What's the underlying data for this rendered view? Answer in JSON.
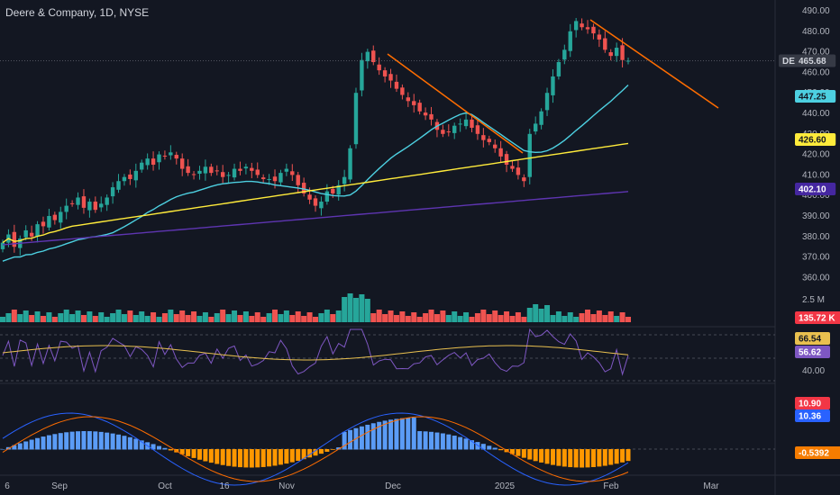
{
  "header": {
    "title": "Deere & Company, 1D, NYSE"
  },
  "colors": {
    "background": "#131722",
    "up": "#26a69a",
    "down": "#ef5350",
    "sma_fast": "#4dd0e1",
    "sma_mid": "#ffeb3b",
    "sma_slow": "#5e35b1",
    "trendline": "#ff6d00",
    "rsi": "#7e57c2",
    "rsi_ma": "#e9c04f",
    "macd": "#2962ff",
    "signal": "#ff6d00"
  },
  "price_pane": {
    "ticks": [
      "490.00",
      "480.00",
      "470.00",
      "460.00",
      "450.00",
      "440.00",
      "430.00",
      "420.00",
      "410.00",
      "400.00",
      "390.00",
      "380.00",
      "370.00",
      "360.00"
    ],
    "last_price": {
      "symbol": "DE",
      "value": "465.68"
    },
    "sma_labels": {
      "fast": "447.25",
      "mid": "426.60",
      "slow": "402.10"
    }
  },
  "volume_pane": {
    "tick": "2.5 M",
    "last_label": "135.72 K"
  },
  "rsi_pane": {
    "labels": {
      "rsi_ma": "66.54",
      "rsi": "56.62"
    },
    "tick": "40.00"
  },
  "macd_pane": {
    "labels": {
      "signal": "10.90",
      "macd": "10.36",
      "hist": "-0.5392"
    }
  },
  "time_axis": [
    "6",
    "Sep",
    "Oct",
    "16",
    "Nov",
    "Dec",
    "2025",
    "Feb",
    "Mar"
  ],
  "chart_data": {
    "type": "candlestick",
    "title": "Deere & Company, 1D, NYSE",
    "ylim": [
      355,
      495
    ],
    "last_price": 465.68,
    "sma": {
      "fast": 447.25,
      "mid": 426.6,
      "slow": 402.1
    },
    "volume_last": "135.72 K",
    "rsi": 56.62,
    "rsi_ma": 66.54,
    "macd": 10.36,
    "macd_signal": 10.9,
    "macd_hist": -0.5392,
    "series_close": [
      377,
      381,
      375,
      379,
      383,
      380,
      386,
      385,
      390,
      388,
      392,
      395,
      396,
      399,
      394,
      397,
      393,
      396,
      399,
      404,
      407,
      409,
      408,
      412,
      416,
      418,
      415,
      420,
      419,
      421,
      418,
      413,
      411,
      410,
      412,
      414,
      411,
      412,
      409,
      410,
      413,
      412,
      414,
      412,
      410,
      408,
      408,
      407,
      411,
      413,
      410,
      405,
      401,
      398,
      395,
      397,
      402,
      401,
      405,
      409,
      423,
      450,
      466,
      470,
      465,
      461,
      458,
      456,
      452,
      449,
      446,
      444,
      441,
      439,
      437,
      432,
      430,
      431,
      434,
      435,
      437,
      433,
      430,
      427,
      426,
      423,
      419,
      415,
      413,
      410,
      407,
      430,
      435,
      441,
      450,
      458,
      465,
      471,
      480,
      485,
      482,
      481,
      479,
      476,
      471,
      468,
      472,
      466,
      465.68
    ]
  }
}
